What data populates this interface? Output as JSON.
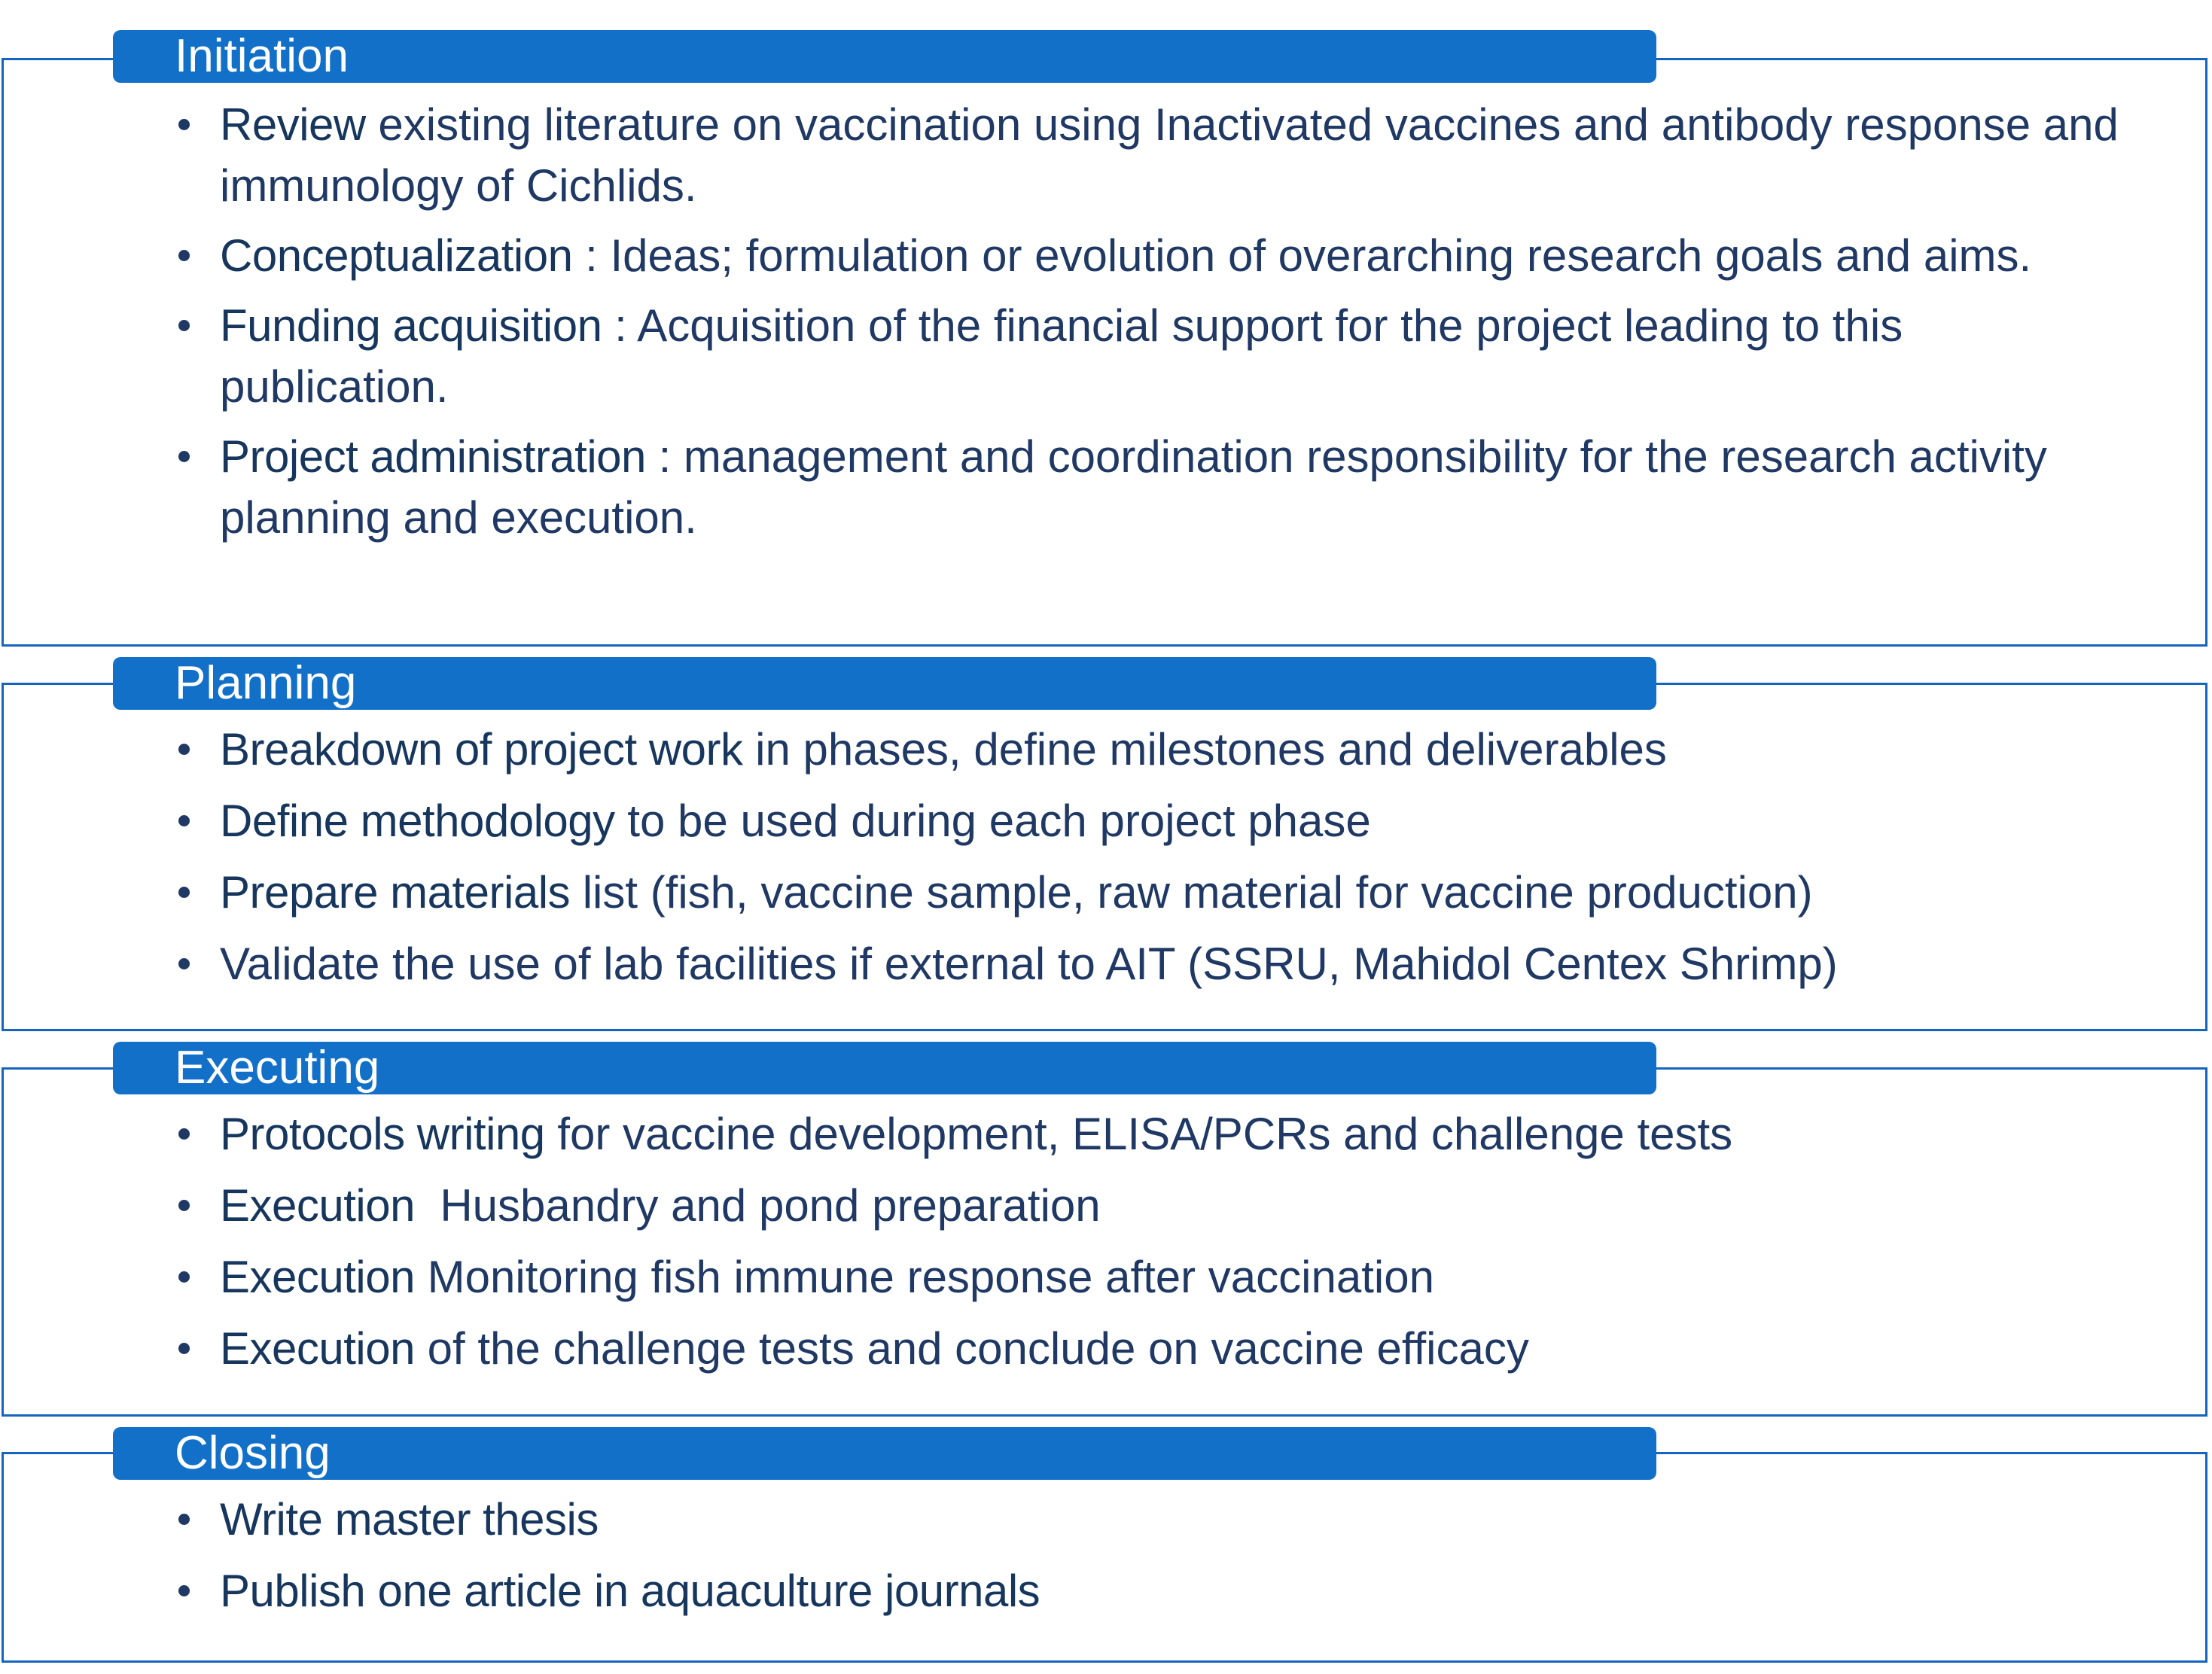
{
  "phases": [
    {
      "title": "Initiation",
      "items": [
        {
          "term": "Review",
          "desc": " existing literature on vaccination using Inactivated vaccines and antibody response and immunology of Cichlids."
        },
        {
          "term": "Conceptualization",
          "desc": " :  Ideas; formulation or evolution of overarching research goals and aims."
        },
        {
          "term": "Funding acquisition",
          "desc": " : Acquisition of the financial support for the project leading to this publication."
        },
        {
          "term": "Project administration",
          "desc": " : management and coordination responsibility for the research activity planning and execution."
        }
      ]
    },
    {
      "title": "Planning",
      "items": [
        {
          "term": "Breakdown of project work",
          "desc": " in phases, define milestones and deliverables"
        },
        {
          "term": "Define methodology",
          "desc": " to be used during each project phase"
        },
        {
          "term": "Prepare materials",
          "desc": " list (fish, vaccine sample, raw material for vaccine production)"
        },
        {
          "term": "",
          "desc": "Validate the use of lab facilities if external to AIT (SSRU, Mahidol Centex Shrimp)"
        }
      ]
    },
    {
      "title": "Executing",
      "items": [
        {
          "term": "Protocols writing",
          "desc": " for vaccine development, ELISA/PCRs and challenge tests"
        },
        {
          "term": "Execution",
          "desc": "  Husbandry and pond preparation"
        },
        {
          "term": "Execution",
          "desc": " Monitoring fish immune response after vaccination"
        },
        {
          "term": "Execution",
          "desc": " of the challenge tests and conclude on vaccine efficacy"
        }
      ]
    },
    {
      "title": "Closing",
      "items": [
        {
          "term": "Write master thesis",
          "desc": ""
        },
        {
          "term": "Publish one article in aquaculture journals",
          "desc": ""
        }
      ]
    }
  ]
}
